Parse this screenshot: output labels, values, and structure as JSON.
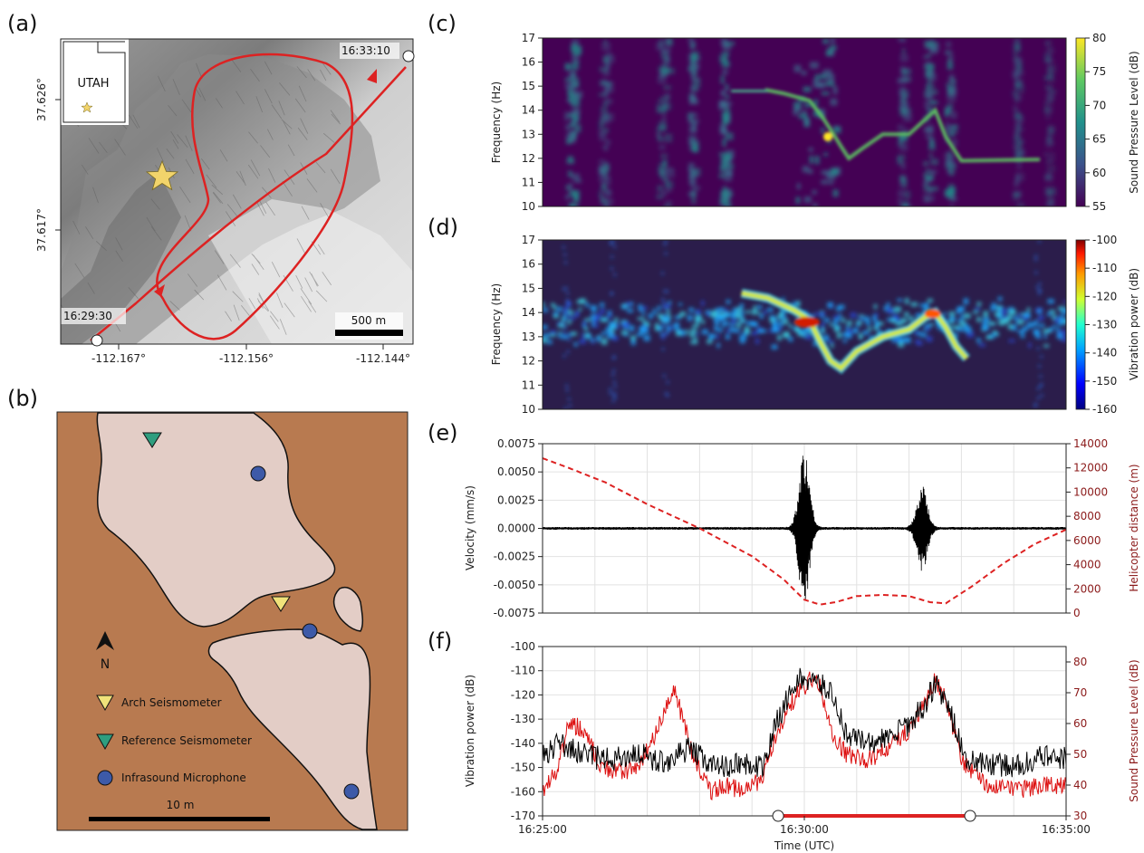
{
  "panel_labels": {
    "a": "(a)",
    "b": "(b)",
    "c": "(c)",
    "d": "(d)",
    "e": "(e)",
    "f": "(f)"
  },
  "map": {
    "inset_label": "UTAH",
    "lat_ticks": [
      "37.626°",
      "37.617°"
    ],
    "lon_ticks": [
      "-112.167°",
      "-112.156°",
      "-112.144°"
    ],
    "start_time": "16:29:30",
    "end_time": "16:33:10",
    "scale_label": "500 m",
    "colors": {
      "flight_path": "#dd2222",
      "star": "#f2d46b"
    }
  },
  "site_map": {
    "north_label": "N",
    "legend": [
      "Arch Seismometer",
      "Reference Seismometer",
      "Infrasound Microphone"
    ],
    "scale_label": "10 m",
    "colors": {
      "ground": "#b87a50",
      "rock": "#e3cdc6",
      "arch": "#f0e27a",
      "reference": "#2f9e7f",
      "microphone": "#3d5aa8"
    },
    "icons": [
      "north-arrow-icon",
      "triangle-marker-icon",
      "circle-marker-icon"
    ]
  },
  "chart_data": [
    {
      "id": "c",
      "type": "heatmap",
      "ylabel": "Frequency (Hz)",
      "y_ticks": [
        "10",
        "11",
        "12",
        "13",
        "14",
        "15",
        "16",
        "17"
      ],
      "ylim": [
        10,
        17
      ],
      "colorbar_label": "Sound Pressure Level (dB)",
      "colorbar_ticks": [
        "80",
        "75",
        "70",
        "65",
        "60",
        "55"
      ],
      "colorbar_range": [
        55,
        80
      ],
      "colormap": "viridis",
      "time_range": [
        "16:25:00",
        "16:35:00"
      ],
      "tonal_track_hz": [
        [
          4.25,
          14.85
        ],
        [
          4.6,
          14.7
        ],
        [
          5.1,
          14.4
        ],
        [
          5.35,
          13.7
        ],
        [
          5.5,
          13.2
        ],
        [
          5.7,
          12.5
        ],
        [
          5.85,
          12.0
        ],
        [
          6.1,
          12.4
        ],
        [
          6.5,
          13.0
        ],
        [
          7.0,
          13.0
        ],
        [
          7.3,
          13.6
        ],
        [
          7.5,
          14.0
        ],
        [
          7.7,
          12.9
        ],
        [
          8.0,
          11.9
        ],
        [
          9.5,
          11.95
        ]
      ]
    },
    {
      "id": "d",
      "type": "heatmap",
      "ylabel": "Frequency (Hz)",
      "y_ticks": [
        "10",
        "11",
        "12",
        "13",
        "14",
        "15",
        "16",
        "17"
      ],
      "ylim": [
        10,
        17
      ],
      "colorbar_label": "Vibration power (dB)",
      "colorbar_ticks": [
        "-100",
        "-110",
        "-120",
        "-130",
        "-140",
        "-150",
        "-160"
      ],
      "colorbar_range": [
        -160,
        -100
      ],
      "colormap": "jet",
      "time_range": [
        "16:25:00",
        "16:35:00"
      ],
      "band_center_hz": 13.6,
      "tonal_track_hz": [
        [
          3.8,
          14.8
        ],
        [
          4.3,
          14.6
        ],
        [
          4.8,
          14.1
        ],
        [
          5.1,
          13.7
        ],
        [
          5.3,
          12.8
        ],
        [
          5.5,
          12.0
        ],
        [
          5.7,
          11.7
        ],
        [
          6.0,
          12.4
        ],
        [
          6.5,
          13.0
        ],
        [
          7.0,
          13.3
        ],
        [
          7.3,
          13.8
        ],
        [
          7.5,
          14.0
        ],
        [
          7.7,
          13.4
        ],
        [
          7.9,
          12.6
        ],
        [
          8.1,
          12.1
        ]
      ]
    },
    {
      "id": "e",
      "type": "line",
      "xlabel": "",
      "ylabel": "Velocity (mm/s)",
      "y_ticks": [
        "0.0075",
        "0.0050",
        "0.0025",
        "0.0000",
        "-0.0025",
        "-0.0050",
        "-0.0075"
      ],
      "ylim": [
        -0.0075,
        0.0075
      ],
      "ylabel2": "Helicopter distance (m)",
      "y2_ticks": [
        "14000",
        "12000",
        "10000",
        "8000",
        "6000",
        "4000",
        "2000",
        "0"
      ],
      "y2lim": [
        0,
        14000
      ],
      "x_minutes": [
        0,
        10
      ],
      "series": [
        {
          "role": "velocity",
          "color": "#000000",
          "bursts": [
            {
              "t": 5.0,
              "amp": 0.0071,
              "amp_neg": -0.0068,
              "width": 0.14
            },
            {
              "t": 7.25,
              "amp": 0.0038,
              "amp_neg": -0.0038,
              "width": 0.14
            }
          ],
          "noise_amp": 0.00012
        },
        {
          "role": "distance",
          "color": "#dd2222",
          "style": "dashed",
          "t": [
            0,
            0.5,
            1.2,
            2.0,
            3.0,
            4.0,
            4.6,
            5.0,
            5.3,
            5.6,
            6.0,
            6.5,
            7.0,
            7.4,
            7.7,
            8.2,
            8.8,
            9.4,
            10.0
          ],
          "d": [
            12800,
            12000,
            10800,
            9000,
            7000,
            4700,
            2800,
            1100,
            700,
            900,
            1400,
            1500,
            1400,
            900,
            800,
            2200,
            4100,
            5700,
            6900
          ]
        }
      ]
    },
    {
      "id": "f",
      "type": "line",
      "xlabel": "Time (UTC)",
      "x_ticks": [
        "16:25:00",
        "16:30:00",
        "16:35:00"
      ],
      "x_minutes": [
        0,
        10
      ],
      "ylabel": "Vibration power (dB)",
      "y_ticks": [
        "-100",
        "-110",
        "-120",
        "-130",
        "-140",
        "-150",
        "-160",
        "-170"
      ],
      "ylim": [
        -170,
        -100
      ],
      "ylabel2": "Sound Pressure Level (dB)",
      "y2_ticks": [
        "80",
        "70",
        "60",
        "50",
        "40",
        "30"
      ],
      "y2lim": [
        30,
        85
      ],
      "flight_interval": [
        "16:29:30",
        "16:33:10"
      ],
      "series": [
        {
          "role": "vibration",
          "color": "#000000",
          "t": [
            0,
            0.3,
            0.8,
            1.3,
            1.8,
            2.3,
            2.8,
            3.3,
            3.8,
            4.2,
            4.5,
            4.8,
            5.0,
            5.2,
            5.5,
            5.8,
            6.2,
            6.6,
            7.0,
            7.3,
            7.5,
            7.8,
            8.1,
            8.5,
            9.0,
            9.5,
            10.0
          ],
          "v": [
            -145,
            -140,
            -145,
            -147,
            -144,
            -148,
            -142,
            -150,
            -148,
            -150,
            -130,
            -116,
            -112,
            -115,
            -118,
            -136,
            -140,
            -138,
            -132,
            -124,
            -115,
            -128,
            -148,
            -148,
            -150,
            -146,
            -146
          ],
          "noise": 5
        },
        {
          "role": "spl",
          "color": "#dd1111",
          "t": [
            0,
            0.3,
            0.5,
            0.8,
            1.1,
            1.4,
            1.8,
            2.2,
            2.5,
            2.9,
            3.2,
            3.5,
            3.8,
            4.2,
            4.5,
            4.8,
            5.1,
            5.3,
            5.5,
            5.8,
            6.2,
            6.6,
            7.0,
            7.3,
            7.5,
            7.7,
            8.0,
            8.5,
            9.0,
            9.5,
            10.0
          ],
          "v": [
            38,
            45,
            60,
            58,
            46,
            44,
            45,
            58,
            72,
            48,
            38,
            40,
            38,
            42,
            58,
            68,
            74,
            72,
            58,
            50,
            48,
            52,
            58,
            66,
            74,
            68,
            48,
            40,
            38,
            40,
            40
          ],
          "noise": 3
        }
      ]
    }
  ],
  "colors": {
    "flight_path": "#dd2222",
    "axis": "#222222",
    "grid": "#d8d8d8"
  }
}
